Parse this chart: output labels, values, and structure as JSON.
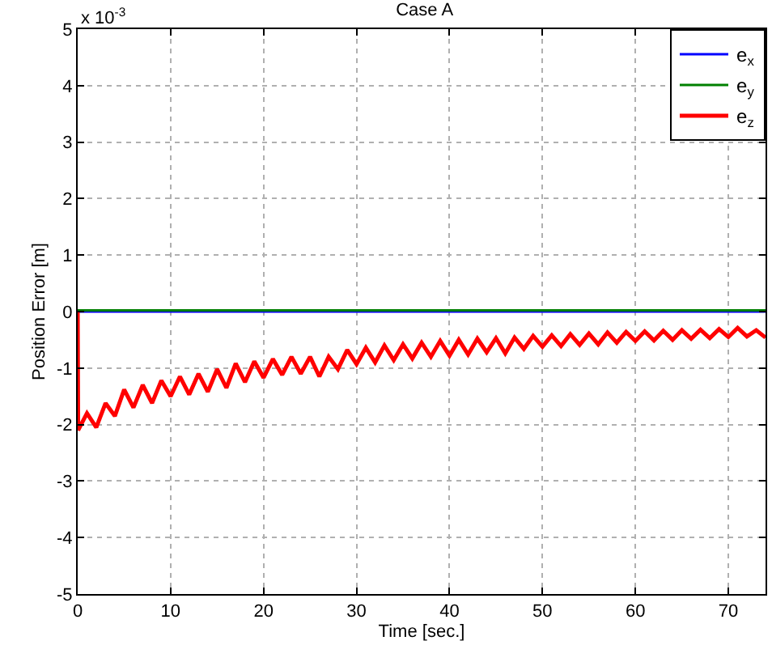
{
  "chart_data": {
    "type": "line",
    "title": "Case A",
    "xlabel": "Time [sec.]",
    "ylabel": "Position Error [m]",
    "annotations": [
      "x 10$^{-3}$"
    ],
    "xlim": [
      0,
      74
    ],
    "xticks": [
      0,
      10,
      20,
      30,
      40,
      50,
      60,
      70
    ],
    "ylim": [
      -5,
      5
    ],
    "yticks": [
      -5,
      -4,
      -3,
      -2,
      -1,
      0,
      1,
      2,
      3,
      4,
      5
    ],
    "grid": true,
    "legend": "top right",
    "line_style": "solid",
    "marker": "none",
    "series": [
      {
        "name": "e$_{x}$",
        "color": "#0000ff",
        "x": [
          0,
          74
        ],
        "values": [
          0,
          0
        ]
      },
      {
        "name": "e$_{y}$",
        "color": "#008000",
        "x": [
          0,
          74
        ],
        "values": [
          0.02,
          0.02
        ]
      },
      {
        "name": "e$_{z}$",
        "color": "#ff0000",
        "x": [
          0,
          0.05,
          1,
          2,
          3,
          4,
          5,
          6,
          7,
          8,
          9,
          10,
          11,
          12,
          13,
          14,
          15,
          16,
          17,
          18,
          19,
          20,
          21,
          22,
          23,
          24,
          25,
          26,
          27,
          28,
          29,
          30,
          31,
          32,
          33,
          34,
          35,
          36,
          37,
          38,
          39,
          40,
          41,
          42,
          43,
          44,
          45,
          46,
          47,
          48,
          49,
          50,
          51,
          52,
          53,
          54,
          55,
          56,
          57,
          58,
          59,
          60,
          61,
          62,
          63,
          64,
          65,
          66,
          67,
          68,
          69,
          70,
          71,
          72,
          73,
          74
        ],
        "values": [
          0,
          -2.1,
          -1.8,
          -2.05,
          -1.62,
          -1.85,
          -1.38,
          -1.7,
          -1.3,
          -1.62,
          -1.22,
          -1.5,
          -1.15,
          -1.47,
          -1.1,
          -1.42,
          -1.02,
          -1.35,
          -0.92,
          -1.25,
          -0.88,
          -1.17,
          -0.84,
          -1.12,
          -0.8,
          -1.1,
          -0.8,
          -1.15,
          -0.8,
          -1.02,
          -0.68,
          -0.93,
          -0.64,
          -0.9,
          -0.6,
          -0.86,
          -0.58,
          -0.83,
          -0.55,
          -0.8,
          -0.52,
          -0.78,
          -0.5,
          -0.76,
          -0.48,
          -0.72,
          -0.47,
          -0.74,
          -0.46,
          -0.66,
          -0.43,
          -0.62,
          -0.42,
          -0.61,
          -0.4,
          -0.59,
          -0.39,
          -0.58,
          -0.37,
          -0.55,
          -0.36,
          -0.52,
          -0.35,
          -0.51,
          -0.34,
          -0.5,
          -0.33,
          -0.48,
          -0.32,
          -0.47,
          -0.31,
          -0.45,
          -0.29,
          -0.44,
          -0.33,
          -0.46
        ]
      }
    ]
  }
}
